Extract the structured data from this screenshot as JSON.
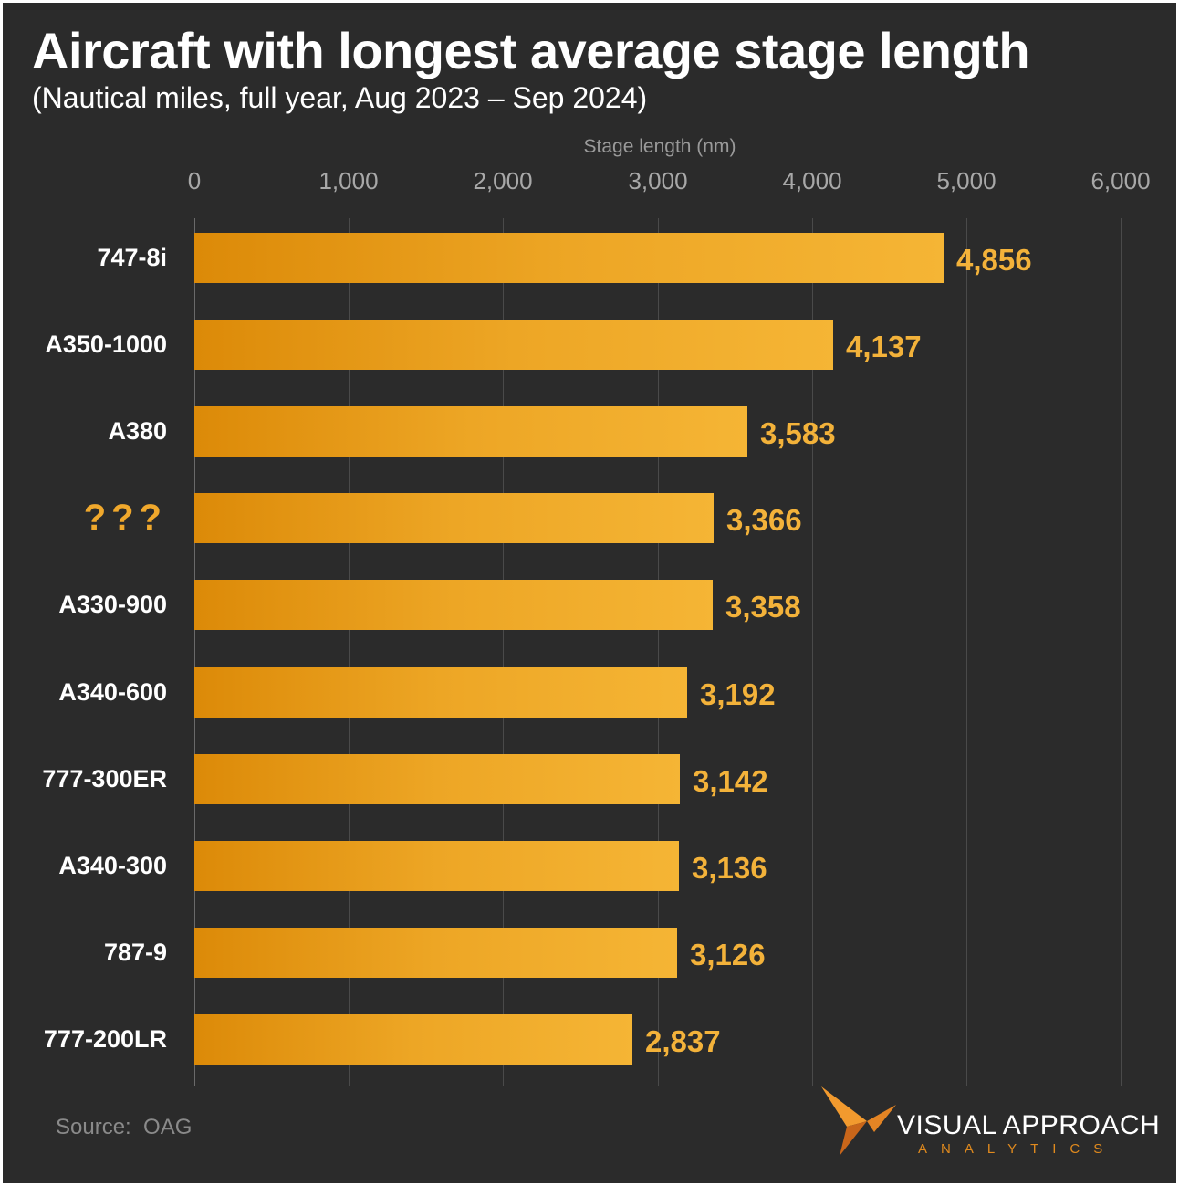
{
  "chart_data": {
    "type": "bar",
    "orientation": "horizontal",
    "title": "Aircraft with longest average stage length",
    "subtitle": "(Nautical miles, full year, Aug 2023 – Sep 2024)",
    "xlabel": "Stage length (nm)",
    "ylabel": "",
    "xlim": [
      0,
      6000
    ],
    "x_ticks": [
      0,
      1000,
      2000,
      3000,
      4000,
      5000,
      6000
    ],
    "x_tick_labels": [
      "0",
      "1,000",
      "2,000",
      "3,000",
      "4,000",
      "5,000",
      "6,000"
    ],
    "categories": [
      "747-8i",
      "A350-1000",
      "A380",
      "???",
      "A330-900",
      "A340-600",
      "777-300ER",
      "A340-300",
      "787-9",
      "777-200LR"
    ],
    "values": [
      4856,
      4137,
      3583,
      3366,
      3358,
      3192,
      3142,
      3136,
      3126,
      2837
    ],
    "value_labels": [
      "4,856",
      "4,137",
      "3,583",
      "3,366",
      "3,358",
      "3,192",
      "3,142",
      "3,136",
      "3,126",
      "2,837"
    ],
    "highlight_category": "???",
    "grid": true,
    "bar_color": "#eda625",
    "value_label_color": "#f3b23a"
  },
  "footer": {
    "source": "Source:  OAG"
  },
  "branding": {
    "name": "VISUAL APPROACH",
    "tagline": "ANALYTICS",
    "accent_color": "#e08a1e"
  }
}
